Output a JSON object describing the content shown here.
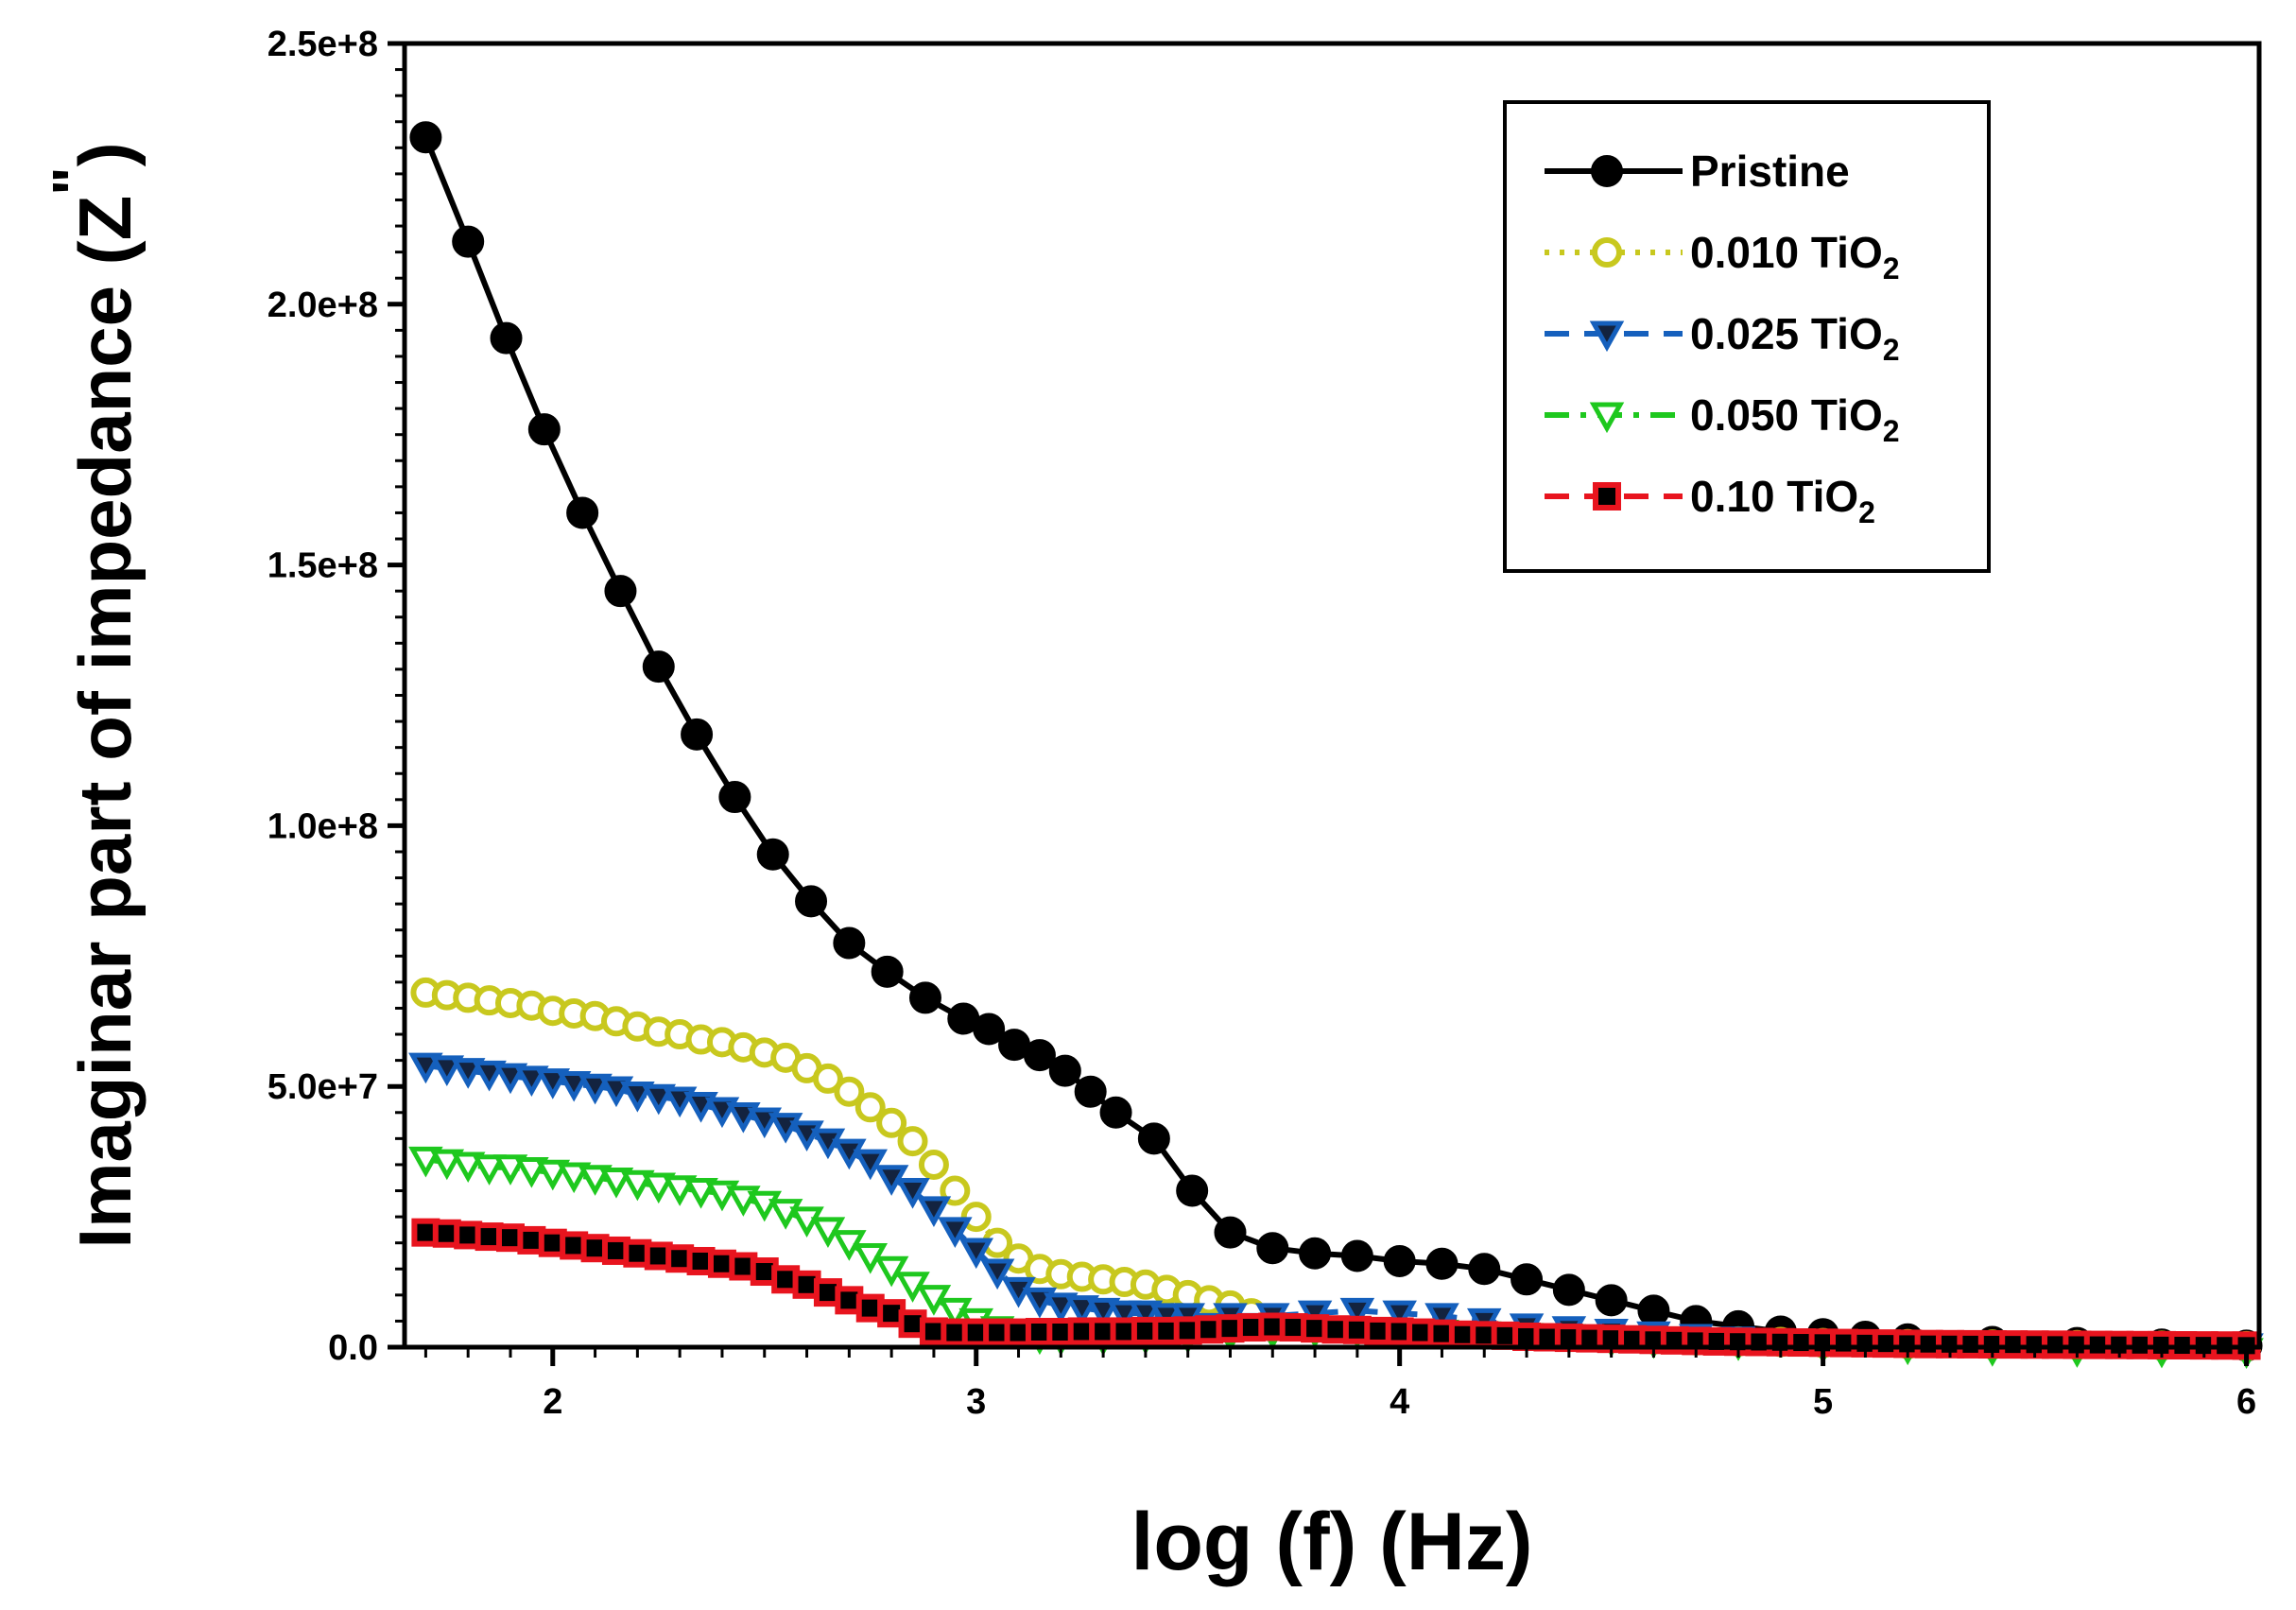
{
  "chart_data": {
    "type": "line",
    "title": "",
    "xlabel": "log (f) (Hz)",
    "ylabel_main": "Imaginar part of impedance (Z",
    "ylabel_sup": "\"",
    "ylabel_close": ")",
    "xlim": [
      1.65,
      6.03
    ],
    "ylim": [
      0,
      250000000
    ],
    "x_ticks": [
      2,
      3,
      4,
      5,
      6
    ],
    "x_tick_labels": [
      "2",
      "3",
      "4",
      "5",
      "6"
    ],
    "y_ticks": [
      0,
      50000000,
      100000000,
      150000000,
      200000000,
      250000000
    ],
    "y_tick_labels": [
      "0.0",
      "5.0e+7",
      "1.0e+8",
      "1.5e+8",
      "2.0e+8",
      "2.5e+8"
    ],
    "legend_position": "top-right",
    "grid": false,
    "series": [
      {
        "name": "Pristine",
        "name_sub": "",
        "color": "#000000",
        "marker": "circle-filled",
        "line_style": "solid",
        "points": [
          [
            1.7,
            232
          ],
          [
            1.8,
            212
          ],
          [
            1.89,
            193.5
          ],
          [
            1.98,
            176
          ],
          [
            2.07,
            160
          ],
          [
            2.16,
            145
          ],
          [
            2.25,
            130.5
          ],
          [
            2.34,
            117.5
          ],
          [
            2.43,
            105.5
          ],
          [
            2.52,
            94.5
          ],
          [
            2.61,
            85.5
          ],
          [
            2.7,
            77.5
          ],
          [
            2.79,
            72
          ],
          [
            2.88,
            67
          ],
          [
            2.97,
            63
          ],
          [
            3.03,
            61
          ],
          [
            3.09,
            58
          ],
          [
            3.15,
            56
          ],
          [
            3.21,
            53
          ],
          [
            3.27,
            49
          ],
          [
            3.33,
            45
          ],
          [
            3.42,
            40
          ],
          [
            3.51,
            30
          ],
          [
            3.6,
            22
          ],
          [
            3.7,
            19
          ],
          [
            3.8,
            18
          ],
          [
            3.9,
            17.5
          ],
          [
            4.0,
            16.5
          ],
          [
            4.1,
            16
          ],
          [
            4.2,
            15
          ],
          [
            4.3,
            13
          ],
          [
            4.4,
            11
          ],
          [
            4.5,
            9
          ],
          [
            4.6,
            7
          ],
          [
            4.7,
            5
          ],
          [
            4.8,
            4
          ],
          [
            4.9,
            3
          ],
          [
            5.0,
            2.5
          ],
          [
            5.1,
            2
          ],
          [
            5.2,
            1.5
          ],
          [
            5.4,
            1
          ],
          [
            5.6,
            0.8
          ],
          [
            5.8,
            0.5
          ],
          [
            6.0,
            0.3
          ]
        ],
        "data_x": [
          1.7,
          1.8,
          1.89,
          1.98,
          2.07,
          2.16,
          2.25,
          2.34,
          2.43,
          2.52,
          2.61,
          2.7,
          2.79,
          2.88,
          2.97,
          3.03,
          3.09,
          3.15,
          3.21,
          3.27,
          3.33,
          3.42,
          3.51,
          3.6,
          3.7,
          3.8,
          3.9,
          4.0,
          4.1,
          4.2,
          4.3,
          4.4,
          4.5,
          4.6,
          4.7,
          4.8,
          4.9,
          5.0,
          5.1,
          5.2,
          5.4,
          5.6,
          5.8,
          6.0
        ],
        "data_y_1e6": [
          232,
          212,
          193.5,
          176,
          160,
          145,
          130.5,
          117.5,
          105.5,
          94.5,
          85.5,
          77.5,
          72,
          67,
          63,
          61,
          58,
          56,
          53,
          49,
          45,
          40,
          30,
          22,
          19,
          18,
          17.5,
          16.5,
          16,
          15,
          13,
          11,
          9,
          7,
          5,
          4,
          3,
          2.5,
          2,
          1.5,
          1,
          0.8,
          0.5,
          0.3
        ]
      },
      {
        "name": "0.010 TiO",
        "name_sub": "2",
        "color": "#c8c81e",
        "marker": "circle-open",
        "line_style": "dotted",
        "data_x": [
          1.7,
          1.75,
          1.8,
          1.85,
          1.9,
          1.95,
          2.0,
          2.05,
          2.1,
          2.15,
          2.2,
          2.25,
          2.3,
          2.35,
          2.4,
          2.45,
          2.5,
          2.55,
          2.6,
          2.65,
          2.7,
          2.75,
          2.8,
          2.85,
          2.9,
          2.95,
          3.0,
          3.05,
          3.1,
          3.15,
          3.2,
          3.25,
          3.3,
          3.35,
          3.4,
          3.45,
          3.5,
          3.55,
          3.6,
          3.65,
          3.7,
          3.8,
          3.9,
          4.0,
          4.1,
          4.2,
          4.3,
          4.4,
          4.5,
          4.6,
          4.7,
          4.8,
          4.9,
          5.0,
          5.2,
          5.4,
          5.6,
          5.8,
          6.0
        ],
        "data_y_1e6": [
          68,
          67.5,
          67,
          66.5,
          66,
          65.5,
          64.5,
          64,
          63.5,
          62.5,
          61.5,
          60.5,
          60,
          59,
          58.5,
          57.5,
          56.5,
          55.5,
          53.5,
          51.5,
          49,
          46,
          43,
          39.5,
          35,
          30,
          25,
          20,
          17,
          15,
          14,
          13.5,
          13,
          12.5,
          12,
          11,
          10,
          9,
          8,
          6.5,
          5,
          4,
          3.5,
          3,
          2.8,
          2.5,
          2.2,
          2,
          1.8,
          1.5,
          1.3,
          1.1,
          1,
          0.8,
          0.6,
          0.5,
          0.4,
          0.3,
          0.2
        ]
      },
      {
        "name": "0.025 TiO",
        "name_sub": "2",
        "color": "#1560bd",
        "marker": "triangle-down-filled",
        "line_style": "dashed",
        "data_x": [
          1.7,
          1.75,
          1.8,
          1.85,
          1.9,
          1.95,
          2.0,
          2.05,
          2.1,
          2.15,
          2.2,
          2.25,
          2.3,
          2.35,
          2.4,
          2.45,
          2.5,
          2.55,
          2.6,
          2.65,
          2.7,
          2.75,
          2.8,
          2.85,
          2.9,
          2.95,
          3.0,
          3.05,
          3.1,
          3.15,
          3.2,
          3.25,
          3.3,
          3.35,
          3.4,
          3.45,
          3.5,
          3.6,
          3.7,
          3.8,
          3.9,
          4.0,
          4.1,
          4.2,
          4.3,
          4.4,
          4.5,
          4.6,
          4.7,
          4.8,
          5.0,
          5.2,
          5.4,
          5.6,
          5.8,
          6.0
        ],
        "data_y_1e6": [
          54,
          53.5,
          53,
          52.5,
          52,
          51.5,
          51,
          50.5,
          50,
          49.5,
          48.5,
          48,
          47.5,
          46.5,
          45.5,
          44.5,
          43.5,
          42.5,
          41,
          39.5,
          37.5,
          35.5,
          32.5,
          30,
          26.5,
          22.5,
          18.5,
          14.5,
          11,
          9,
          8,
          7.5,
          7,
          6.5,
          6.5,
          6,
          6,
          6,
          6,
          6.5,
          7,
          6.5,
          6,
          5,
          4,
          3.5,
          3,
          2.5,
          2,
          1.5,
          1,
          0.8,
          0.6,
          0.4,
          0.3,
          0.2
        ]
      },
      {
        "name": "0.050 TiO",
        "name_sub": "2",
        "color": "#1ec81e",
        "marker": "triangle-down-open",
        "line_style": "dash-dot",
        "data_x": [
          1.7,
          1.75,
          1.8,
          1.85,
          1.9,
          1.95,
          2.0,
          2.05,
          2.1,
          2.15,
          2.2,
          2.25,
          2.3,
          2.35,
          2.4,
          2.45,
          2.5,
          2.55,
          2.6,
          2.65,
          2.7,
          2.75,
          2.8,
          2.85,
          2.9,
          2.95,
          3.0,
          3.05,
          3.1,
          3.15,
          3.2,
          3.3,
          3.4,
          3.5,
          3.6,
          3.7,
          3.8,
          3.9,
          4.0,
          4.1,
          4.2,
          4.3,
          4.4,
          4.5,
          4.6,
          4.8,
          5.0,
          5.2,
          5.4,
          5.6,
          5.8,
          6.0
        ],
        "data_y_1e6": [
          36,
          35.5,
          35,
          34.5,
          34.5,
          34,
          33.5,
          33,
          32.5,
          32,
          31.5,
          31,
          30.5,
          30,
          29.5,
          28.5,
          27.5,
          26,
          24.5,
          22.5,
          20,
          17.5,
          15,
          12,
          9.5,
          7,
          5,
          3.5,
          2.5,
          2,
          1.8,
          1.8,
          2,
          2.2,
          2.5,
          3,
          3.2,
          3.2,
          3,
          2.8,
          2.5,
          2.2,
          2,
          1.5,
          1.2,
          0.8,
          0.3,
          0,
          -0.3,
          -0.5,
          -0.6,
          -0.7
        ]
      },
      {
        "name": "0.10 TiO",
        "name_sub": "2",
        "color": "#e8141e",
        "marker": "square-red-black",
        "line_style": "dashed",
        "data_x": [
          1.7,
          1.75,
          1.8,
          1.85,
          1.9,
          1.95,
          2.0,
          2.05,
          2.1,
          2.15,
          2.2,
          2.25,
          2.3,
          2.35,
          2.4,
          2.45,
          2.5,
          2.55,
          2.6,
          2.65,
          2.7,
          2.75,
          2.8,
          2.85,
          2.9,
          2.95,
          3.0,
          3.05,
          3.1,
          3.15,
          3.2,
          3.25,
          3.3,
          3.35,
          3.4,
          3.45,
          3.5,
          3.55,
          3.6,
          3.65,
          3.7,
          3.75,
          3.8,
          3.85,
          3.9,
          3.95,
          4.0,
          4.05,
          4.1,
          4.15,
          4.2,
          4.25,
          4.3,
          4.35,
          4.4,
          4.45,
          4.5,
          4.55,
          4.6,
          4.65,
          4.7,
          4.75,
          4.8,
          4.85,
          4.9,
          4.95,
          5.0,
          5.05,
          5.1,
          5.15,
          5.2,
          5.25,
          5.3,
          5.35,
          5.4,
          5.45,
          5.5,
          5.55,
          5.6,
          5.65,
          5.7,
          5.75,
          5.8,
          5.85,
          5.9,
          5.95,
          6.0
        ],
        "data_y_1e6": [
          22,
          21.8,
          21.5,
          21.2,
          21,
          20.5,
          20,
          19.5,
          19,
          18.5,
          18,
          17.5,
          17,
          16.5,
          16,
          15.5,
          14.5,
          13,
          12,
          10.5,
          9,
          7.5,
          6.5,
          4.5,
          3,
          2.8,
          2.8,
          2.8,
          2.8,
          2.9,
          2.9,
          3,
          3,
          3,
          3.1,
          3.1,
          3.2,
          3.4,
          3.6,
          3.8,
          3.9,
          3.8,
          3.6,
          3.4,
          3.3,
          3.1,
          3,
          2.8,
          2.6,
          2.4,
          2.3,
          2.2,
          2,
          1.9,
          1.8,
          1.7,
          1.6,
          1.5,
          1.4,
          1.3,
          1.2,
          1.1,
          1.05,
          1,
          0.95,
          0.9,
          0.85,
          0.8,
          0.75,
          0.7,
          0.65,
          0.6,
          0.58,
          0.56,
          0.54,
          0.52,
          0.5,
          0.48,
          0.46,
          0.44,
          0.42,
          0.4,
          0.38,
          0.36,
          0.34,
          0.32,
          0.3
        ]
      }
    ]
  }
}
